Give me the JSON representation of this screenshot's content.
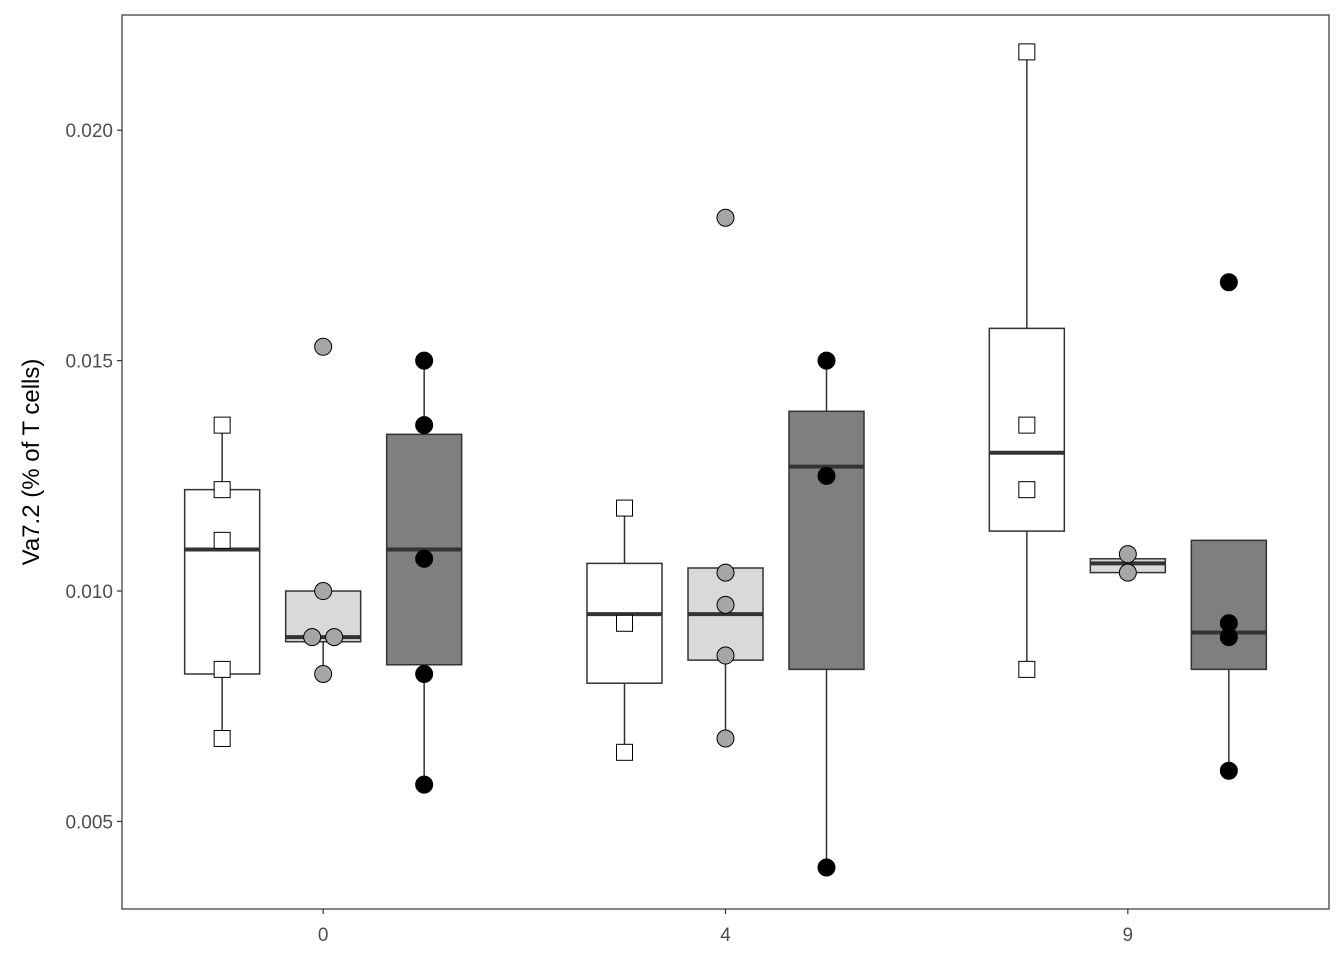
{
  "chart_data": {
    "type": "boxplot",
    "title": "",
    "xlabel": "",
    "ylabel": "Va7.2 (% of T cells)",
    "categories": [
      "0",
      "4",
      "9"
    ],
    "ylim": [
      0.0031,
      0.0225
    ],
    "yticks": [
      0.005,
      0.01,
      0.015,
      0.02
    ],
    "ytick_labels": [
      "0.005",
      "0.010",
      "0.015",
      "0.020"
    ],
    "grid": false,
    "legend": "none",
    "groups": [
      {
        "category": "0",
        "boxes": [
          {
            "fill": "#ffffff",
            "shape": "square",
            "point_fill": "#ffffff",
            "whisker_low": 0.0068,
            "q1": 0.0082,
            "median": 0.0109,
            "q3": 0.0122,
            "whisker_high": 0.0136,
            "points": [
              0.0136,
              0.0122,
              0.0111,
              0.0083,
              0.0068
            ]
          },
          {
            "fill": "#d9d9d9",
            "shape": "circle",
            "point_fill": "#a6a6a6",
            "whisker_low": 0.0082,
            "q1": 0.0089,
            "median": 0.009,
            "q3": 0.01,
            "whisker_high": 0.01,
            "points": [
              0.0153,
              0.01,
              0.009,
              0.009,
              0.0082
            ]
          },
          {
            "fill": "#7f7f7f",
            "shape": "circle",
            "point_fill": "#000000",
            "whisker_low": 0.0058,
            "q1": 0.0084,
            "median": 0.0109,
            "q3": 0.0134,
            "whisker_high": 0.015,
            "points": [
              0.015,
              0.0136,
              0.0107,
              0.0082,
              0.0058
            ]
          }
        ]
      },
      {
        "category": "4",
        "boxes": [
          {
            "fill": "#ffffff",
            "shape": "square",
            "point_fill": "#ffffff",
            "whisker_low": 0.0065,
            "q1": 0.008,
            "median": 0.0095,
            "q3": 0.0106,
            "whisker_high": 0.0118,
            "points": [
              0.0118,
              0.0093,
              0.0065
            ]
          },
          {
            "fill": "#d9d9d9",
            "shape": "circle",
            "point_fill": "#a6a6a6",
            "whisker_low": 0.0068,
            "q1": 0.0085,
            "median": 0.0095,
            "q3": 0.0105,
            "whisker_high": 0.0105,
            "points": [
              0.0181,
              0.0104,
              0.0097,
              0.0086,
              0.0068
            ]
          },
          {
            "fill": "#7f7f7f",
            "shape": "circle",
            "point_fill": "#000000",
            "whisker_low": 0.004,
            "q1": 0.0083,
            "median": 0.0127,
            "q3": 0.0139,
            "whisker_high": 0.015,
            "points": [
              0.015,
              0.0125,
              0.004
            ]
          }
        ]
      },
      {
        "category": "9",
        "boxes": [
          {
            "fill": "#ffffff",
            "shape": "square",
            "point_fill": "#ffffff",
            "whisker_low": 0.0083,
            "q1": 0.0113,
            "median": 0.013,
            "q3": 0.0157,
            "whisker_high": 0.0217,
            "points": [
              0.0217,
              0.0136,
              0.0122,
              0.0083
            ]
          },
          {
            "fill": "#d9d9d9",
            "shape": "circle",
            "point_fill": "#a6a6a6",
            "whisker_low": 0.0104,
            "q1": 0.0104,
            "median": 0.0106,
            "q3": 0.0107,
            "whisker_high": 0.0107,
            "points": [
              0.0108,
              0.0104
            ]
          },
          {
            "fill": "#7f7f7f",
            "shape": "circle",
            "point_fill": "#000000",
            "whisker_low": 0.0061,
            "q1": 0.0083,
            "median": 0.0091,
            "q3": 0.0111,
            "whisker_high": 0.0111,
            "points": [
              0.0167,
              0.0093,
              0.009,
              0.0061
            ]
          }
        ]
      }
    ]
  }
}
